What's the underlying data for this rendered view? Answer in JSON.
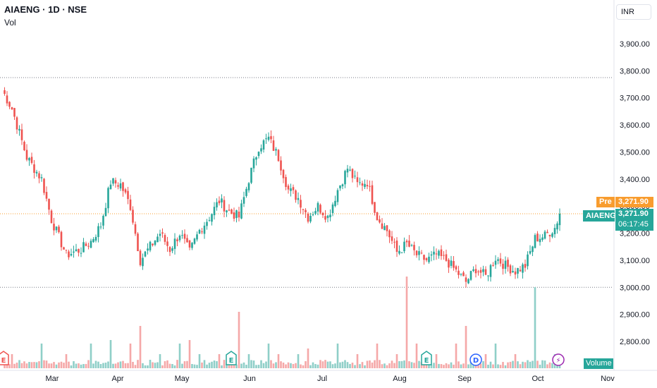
{
  "header": {
    "symbol_line": "AIAENG · 1D · NSE",
    "indicator": "Vol",
    "currency": "INR"
  },
  "badges": {
    "pre_label": "Pre",
    "pre_value": "3,271.90",
    "symbol_tag": "AIAENG",
    "last_value": "3,271.90",
    "countdown": "06:17:45",
    "volume_label": "Volume"
  },
  "colors": {
    "up": "#26a69a",
    "down": "#ef5350",
    "up_volume": "#8fcfc8",
    "down_volume": "#f5a8a8",
    "pre_market": "#f89c2e",
    "grid_dotted": "#787b86"
  },
  "event_markers": [
    {
      "kind": "earnings",
      "symbol": "E",
      "date": "2024-02-05",
      "color": "#ef5350"
    },
    {
      "kind": "earnings",
      "symbol": "E",
      "date": "2024-05-21",
      "color": "#26a69a"
    },
    {
      "kind": "earnings",
      "symbol": "E",
      "date": "2024-08-08",
      "color": "#26a69a"
    },
    {
      "kind": "dividend",
      "symbol": "D",
      "date": "2024-08-27",
      "color": "#2962ff"
    },
    {
      "kind": "lightning",
      "symbol": "⚡",
      "date": "2024-10-01",
      "color": "#9c27b0"
    }
  ],
  "chart_data": {
    "type": "candlestick",
    "x_ticks": [
      "Mar",
      "Apr",
      "May",
      "Jun",
      "Jul",
      "Aug",
      "Sep",
      "Oct",
      "Nov"
    ],
    "y_ticks": [
      "3,900.00",
      "3,800.00",
      "3,700.00",
      "3,600.00",
      "3,500.00",
      "3,400.00",
      "3,300.00",
      "3,200.00",
      "3,100.00",
      "3,000.00",
      "2,900.00",
      "2,800.00"
    ],
    "y_tick_values": [
      3900,
      3800,
      3700,
      3600,
      3500,
      3400,
      3300,
      3200,
      3100,
      3000,
      2900,
      2800
    ],
    "ylim": [
      2715,
      3985
    ],
    "reference_lines": [
      3775,
      3000
    ],
    "pre_market_price": 3271.9,
    "last_price": 3271.9,
    "anchors": [
      [
        0,
        3730,
        0
      ],
      [
        4,
        3660,
        1
      ],
      [
        10,
        3480,
        0
      ],
      [
        16,
        3400,
        2
      ],
      [
        20,
        3250,
        0
      ],
      [
        26,
        3120,
        1
      ],
      [
        32,
        3140,
        0
      ],
      [
        36,
        3170,
        2
      ],
      [
        40,
        3230,
        0
      ],
      [
        44,
        3390,
        4
      ],
      [
        48,
        3380,
        0
      ],
      [
        52,
        3300,
        2
      ],
      [
        56,
        3100,
        3
      ],
      [
        60,
        3150,
        0
      ],
      [
        64,
        3200,
        1
      ],
      [
        68,
        3140,
        0
      ],
      [
        72,
        3200,
        2
      ],
      [
        76,
        3130,
        4
      ],
      [
        80,
        3210,
        1
      ],
      [
        84,
        3260,
        0
      ],
      [
        88,
        3320,
        1
      ],
      [
        92,
        3280,
        0
      ],
      [
        96,
        3260,
        5
      ],
      [
        100,
        3400,
        1
      ],
      [
        104,
        3520,
        0
      ],
      [
        108,
        3550,
        2
      ],
      [
        112,
        3480,
        1
      ],
      [
        116,
        3360,
        0
      ],
      [
        120,
        3330,
        1
      ],
      [
        124,
        3260,
        6
      ],
      [
        128,
        3300,
        0
      ],
      [
        132,
        3260,
        0
      ],
      [
        136,
        3360,
        2
      ],
      [
        140,
        3440,
        0
      ],
      [
        144,
        3380,
        1
      ],
      [
        148,
        3390,
        0
      ],
      [
        152,
        3260,
        2
      ],
      [
        156,
        3210,
        0
      ],
      [
        160,
        3130,
        1
      ],
      [
        164,
        3160,
        7
      ],
      [
        168,
        3120,
        2
      ],
      [
        172,
        3100,
        0
      ],
      [
        176,
        3120,
        1
      ],
      [
        180,
        3100,
        0
      ],
      [
        184,
        3060,
        2
      ],
      [
        188,
        3020,
        3
      ],
      [
        192,
        3070,
        0
      ],
      [
        196,
        3040,
        1
      ],
      [
        200,
        3110,
        2
      ],
      [
        204,
        3080,
        0
      ],
      [
        208,
        3060,
        1
      ],
      [
        212,
        3080,
        0
      ],
      [
        216,
        3180,
        8
      ],
      [
        220,
        3190,
        0
      ],
      [
        224,
        3220,
        1
      ],
      [
        226,
        3271.9,
        0
      ]
    ]
  }
}
